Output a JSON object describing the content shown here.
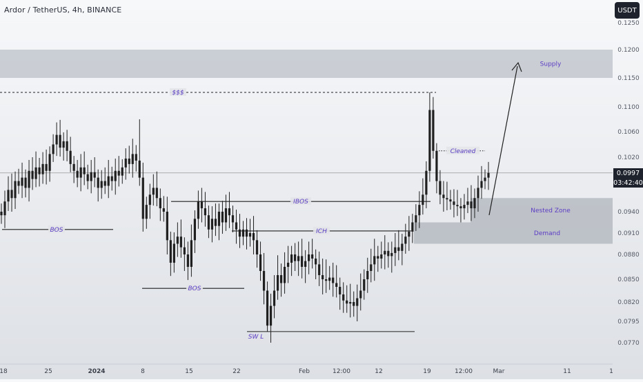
{
  "header": {
    "title": "Ardor / TetherUS, 4h, BINANCE",
    "currency": "USDT"
  },
  "price_tag": {
    "price": "0.0997",
    "countdown": "03:42:40"
  },
  "colors": {
    "candle": "#1f1f1f",
    "zone_fill": "#9aa0aa",
    "annotation_text": "#5b3cc4",
    "line": "#1f1f1f"
  },
  "chart_data": {
    "type": "candlestick",
    "x_tick_labels": [
      "18",
      "25",
      "2024",
      "8",
      "15",
      "22",
      "Feb",
      "12:00",
      "12",
      "19",
      "12:00",
      "Mar",
      "11",
      "1"
    ],
    "y_ticks": [
      0.125,
      0.12,
      0.115,
      0.11,
      0.106,
      0.102,
      0.094,
      0.091,
      0.088,
      0.085,
      0.082,
      0.0795,
      0.077
    ],
    "y_tick_labels": [
      "0.1250",
      "0.1200",
      "0.1150",
      "0.1100",
      "0.1060",
      "0.1020",
      "0.0940",
      "0.0910",
      "0.0880",
      "0.0850",
      "0.0820",
      "0.0795",
      "0.0770"
    ],
    "ylim": [
      0.0755,
      0.127
    ],
    "last_price": 0.0997,
    "zones": [
      {
        "name": "Supply",
        "low": 0.115,
        "high": 0.12,
        "x_start": 0,
        "x_end": 1
      },
      {
        "name": "Nested Zone",
        "low": 0.0925,
        "high": 0.096,
        "x_start": 0.73,
        "x_end": 1
      },
      {
        "name": "Demand",
        "low": 0.0895,
        "high": 0.0925,
        "x_start": 0.68,
        "x_end": 1
      }
    ],
    "levels": [
      {
        "label": "$$$",
        "price": 0.1125,
        "style": "dashed"
      },
      {
        "label": "Cleaned",
        "price": 0.103,
        "style": "dotted"
      },
      {
        "label": "IBOS",
        "price": 0.0955,
        "style": "solid"
      },
      {
        "label": "ICH",
        "price": 0.0913,
        "style": "solid"
      },
      {
        "label": "BOS",
        "price": 0.0915,
        "style": "solid"
      },
      {
        "label": "BOS",
        "price": 0.0838,
        "style": "solid"
      },
      {
        "label": "SW L",
        "price": 0.0783,
        "style": "solid"
      }
    ],
    "closes": [
      0.0935,
      0.0955,
      0.0972,
      0.096,
      0.0985,
      0.0978,
      0.099,
      0.0975,
      0.1,
      0.0988,
      0.1005,
      0.0995,
      0.101,
      0.1,
      0.1025,
      0.104,
      0.1055,
      0.1035,
      0.1045,
      0.103,
      0.101,
      0.1,
      0.099,
      0.1005,
      0.0995,
      0.0985,
      0.0998,
      0.099,
      0.0975,
      0.0985,
      0.0978,
      0.0992,
      0.0985,
      0.1,
      0.0993,
      0.1005,
      0.1018,
      0.101,
      0.1025,
      0.1015,
      0.099,
      0.093,
      0.095,
      0.0965,
      0.0975,
      0.096,
      0.0945,
      0.094,
      0.09,
      0.087,
      0.0895,
      0.0905,
      0.089,
      0.088,
      0.0865,
      0.09,
      0.093,
      0.0955,
      0.0945,
      0.0935,
      0.0915,
      0.093,
      0.092,
      0.094,
      0.0925,
      0.0945,
      0.0935,
      0.0925,
      0.0915,
      0.0905,
      0.0915,
      0.0905,
      0.091,
      0.09,
      0.088,
      0.086,
      0.0835,
      0.079,
      0.0815,
      0.0835,
      0.0855,
      0.0845,
      0.0865,
      0.087,
      0.088,
      0.0872,
      0.0878,
      0.0865,
      0.0872,
      0.088,
      0.0875,
      0.0868,
      0.0855,
      0.085,
      0.0848,
      0.0852,
      0.0845,
      0.084,
      0.083,
      0.0822,
      0.0818,
      0.082,
      0.0815,
      0.0825,
      0.0835,
      0.085,
      0.086,
      0.0868,
      0.0878,
      0.0875,
      0.088,
      0.0885,
      0.0878,
      0.0882,
      0.089,
      0.0885,
      0.0895,
      0.0905,
      0.0912,
      0.0925,
      0.0935,
      0.095,
      0.0965,
      0.1,
      0.1095,
      0.103,
      0.0985,
      0.0965,
      0.096,
      0.0958,
      0.0955,
      0.095,
      0.0948,
      0.0945,
      0.095,
      0.0955,
      0.0945,
      0.096,
      0.0975,
      0.0985,
      0.099,
      0.0997
    ]
  }
}
